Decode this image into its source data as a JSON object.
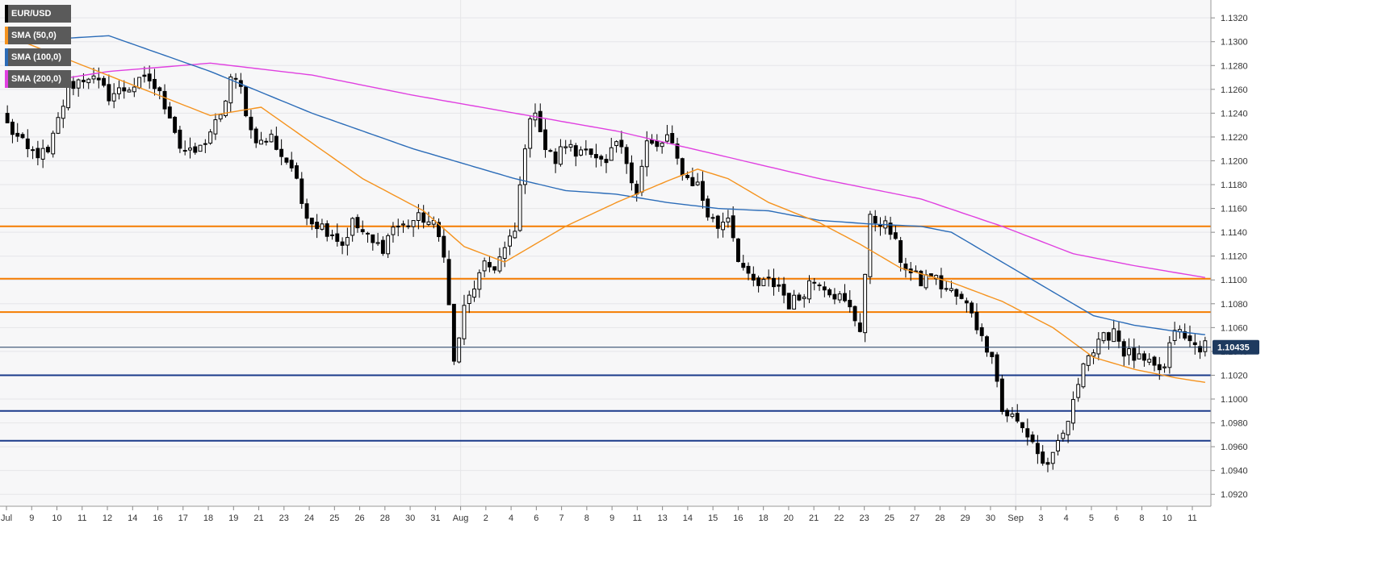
{
  "colors": {
    "background": "#ffffff",
    "plot_bg": "#f7f7f8",
    "grid": "#e6e6e9",
    "candle": "#000000",
    "sma50": "#f5931e",
    "sma100": "#2b6cb8",
    "sma200": "#e040e0",
    "resistance": "#f57c00",
    "support": "#1a3a8a",
    "price_line": "#1e3a5f",
    "price_label_bg": "#1e3a5f"
  },
  "legend": [
    {
      "label": "EUR/USD",
      "color": "#000000"
    },
    {
      "label": "SMA (50,0)",
      "color": "#f5931e"
    },
    {
      "label": "SMA (100,0)",
      "color": "#2b6cb8"
    },
    {
      "label": "SMA (200,0)",
      "color": "#e040e0"
    }
  ],
  "price_label": "1.10435",
  "chart_data": {
    "type": "candlestick",
    "symbol": "EUR/USD",
    "ylim": [
      1.091,
      1.1335
    ],
    "y_ticks": [
      "1.1320",
      "1.1300",
      "1.1280",
      "1.1260",
      "1.1240",
      "1.1220",
      "1.1200",
      "1.1180",
      "1.1160",
      "1.1140",
      "1.1120",
      "1.1100",
      "1.1080",
      "1.1060",
      "1.1040",
      "1.1020",
      "1.1000",
      "1.0980",
      "1.0960",
      "1.0940",
      "1.0920"
    ],
    "x_labels": [
      "Jul",
      "9",
      "10",
      "11",
      "12",
      "14",
      "16",
      "17",
      "18",
      "19",
      "21",
      "23",
      "24",
      "25",
      "26",
      "28",
      "30",
      "31",
      "Aug",
      "2",
      "4",
      "6",
      "7",
      "8",
      "9",
      "11",
      "13",
      "14",
      "15",
      "16",
      "18",
      "20",
      "21",
      "22",
      "23",
      "25",
      "27",
      "28",
      "29",
      "30",
      "Sep",
      "3",
      "4",
      "5",
      "6",
      "8",
      "10",
      "11"
    ],
    "current_price": 1.10435,
    "resistance_levels": [
      1.1145,
      1.1101,
      1.1073
    ],
    "support_levels": [
      1.102,
      1.099,
      1.0965
    ],
    "close_anchors": [
      [
        0,
        1.123
      ],
      [
        4,
        1.1208
      ],
      [
        8,
        1.1205
      ],
      [
        12,
        1.1262
      ],
      [
        16,
        1.1272
      ],
      [
        20,
        1.1255
      ],
      [
        24,
        1.1262
      ],
      [
        28,
        1.1268
      ],
      [
        30,
        1.1255
      ],
      [
        32,
        1.124
      ],
      [
        34,
        1.1212
      ],
      [
        36,
        1.1205
      ],
      [
        38,
        1.121
      ],
      [
        40,
        1.1225
      ],
      [
        42,
        1.1235
      ],
      [
        44,
        1.127
      ],
      [
        46,
        1.126
      ],
      [
        48,
        1.1225
      ],
      [
        50,
        1.1215
      ],
      [
        52,
        1.122
      ],
      [
        54,
        1.1205
      ],
      [
        56,
        1.1195
      ],
      [
        58,
        1.1165
      ],
      [
        60,
        1.115
      ],
      [
        62,
        1.1145
      ],
      [
        64,
        1.114
      ],
      [
        66,
        1.113
      ],
      [
        68,
        1.1148
      ],
      [
        70,
        1.114
      ],
      [
        72,
        1.113
      ],
      [
        74,
        1.1128
      ],
      [
        76,
        1.1145
      ],
      [
        78,
        1.1145
      ],
      [
        80,
        1.115
      ],
      [
        82,
        1.1152
      ],
      [
        84,
        1.1145
      ],
      [
        86,
        1.1125
      ],
      [
        88,
        1.103
      ],
      [
        90,
        1.1075
      ],
      [
        92,
        1.1095
      ],
      [
        94,
        1.111
      ],
      [
        96,
        1.1112
      ],
      [
        98,
        1.1125
      ],
      [
        100,
        1.114
      ],
      [
        102,
        1.1215
      ],
      [
        104,
        1.1245
      ],
      [
        106,
        1.121
      ],
      [
        108,
        1.12
      ],
      [
        110,
        1.1215
      ],
      [
        112,
        1.1205
      ],
      [
        114,
        1.1215
      ],
      [
        116,
        1.12
      ],
      [
        118,
        1.1195
      ],
      [
        120,
        1.1215
      ],
      [
        122,
        1.12
      ],
      [
        124,
        1.1175
      ],
      [
        126,
        1.1215
      ],
      [
        128,
        1.121
      ],
      [
        130,
        1.122
      ],
      [
        132,
        1.12
      ],
      [
        134,
        1.1185
      ],
      [
        136,
        1.118
      ],
      [
        138,
        1.1155
      ],
      [
        140,
        1.1145
      ],
      [
        142,
        1.1155
      ],
      [
        144,
        1.112
      ],
      [
        146,
        1.11
      ],
      [
        148,
        1.1095
      ],
      [
        150,
        1.1098
      ],
      [
        152,
        1.1095
      ],
      [
        154,
        1.108
      ],
      [
        156,
        1.1085
      ],
      [
        158,
        1.1098
      ],
      [
        160,
        1.11
      ],
      [
        162,
        1.1092
      ],
      [
        164,
        1.1085
      ],
      [
        166,
        1.1075
      ],
      [
        168,
        1.106
      ],
      [
        170,
        1.115
      ],
      [
        172,
        1.115
      ],
      [
        174,
        1.114
      ],
      [
        176,
        1.1118
      ],
      [
        178,
        1.1105
      ],
      [
        180,
        1.1098
      ],
      [
        182,
        1.1105
      ],
      [
        184,
        1.1095
      ],
      [
        186,
        1.109
      ],
      [
        188,
        1.1082
      ],
      [
        190,
        1.1075
      ],
      [
        192,
        1.105
      ],
      [
        194,
        1.104
      ],
      [
        196,
        1.099
      ],
      [
        198,
        1.0985
      ],
      [
        200,
        1.0975
      ],
      [
        202,
        1.0965
      ],
      [
        204,
        1.0945
      ],
      [
        206,
        1.095
      ],
      [
        208,
        1.097
      ],
      [
        210,
        1.0995
      ],
      [
        212,
        1.1035
      ],
      [
        214,
        1.104
      ],
      [
        216,
        1.105
      ],
      [
        218,
        1.106
      ],
      [
        220,
        1.104
      ],
      [
        222,
        1.1035
      ],
      [
        224,
        1.103
      ],
      [
        226,
        1.1025
      ],
      [
        228,
        1.1025
      ],
      [
        230,
        1.106
      ],
      [
        232,
        1.105
      ],
      [
        234,
        1.1045
      ],
      [
        236,
        1.1044
      ]
    ],
    "n_candles": 237,
    "sma50": [
      [
        0,
        1.1305
      ],
      [
        40,
        1.1238
      ],
      [
        50,
        1.1245
      ],
      [
        60,
        1.1215
      ],
      [
        70,
        1.1185
      ],
      [
        82,
        1.1158
      ],
      [
        90,
        1.1128
      ],
      [
        98,
        1.1115
      ],
      [
        110,
        1.1145
      ],
      [
        120,
        1.1165
      ],
      [
        130,
        1.1183
      ],
      [
        136,
        1.1193
      ],
      [
        142,
        1.1185
      ],
      [
        150,
        1.1165
      ],
      [
        160,
        1.1148
      ],
      [
        168,
        1.113
      ],
      [
        176,
        1.111
      ],
      [
        186,
        1.1098
      ],
      [
        196,
        1.1082
      ],
      [
        206,
        1.106
      ],
      [
        214,
        1.1035
      ],
      [
        222,
        1.1025
      ],
      [
        230,
        1.1018
      ],
      [
        236,
        1.1014
      ]
    ],
    "sma100": [
      [
        0,
        1.13
      ],
      [
        20,
        1.1305
      ],
      [
        40,
        1.1275
      ],
      [
        60,
        1.124
      ],
      [
        80,
        1.121
      ],
      [
        100,
        1.1185
      ],
      [
        110,
        1.1175
      ],
      [
        120,
        1.1172
      ],
      [
        130,
        1.1165
      ],
      [
        140,
        1.116
      ],
      [
        150,
        1.1158
      ],
      [
        160,
        1.115
      ],
      [
        170,
        1.1147
      ],
      [
        180,
        1.1145
      ],
      [
        186,
        1.114
      ],
      [
        196,
        1.1115
      ],
      [
        206,
        1.109
      ],
      [
        214,
        1.107
      ],
      [
        222,
        1.1062
      ],
      [
        230,
        1.1057
      ],
      [
        236,
        1.1054
      ]
    ],
    "sma200": [
      [
        0,
        1.1262
      ],
      [
        20,
        1.1275
      ],
      [
        40,
        1.1282
      ],
      [
        60,
        1.1272
      ],
      [
        80,
        1.1255
      ],
      [
        100,
        1.124
      ],
      [
        120,
        1.1225
      ],
      [
        140,
        1.1205
      ],
      [
        160,
        1.1185
      ],
      [
        180,
        1.1168
      ],
      [
        196,
        1.1145
      ],
      [
        210,
        1.1122
      ],
      [
        222,
        1.1112
      ],
      [
        236,
        1.1102
      ]
    ]
  }
}
